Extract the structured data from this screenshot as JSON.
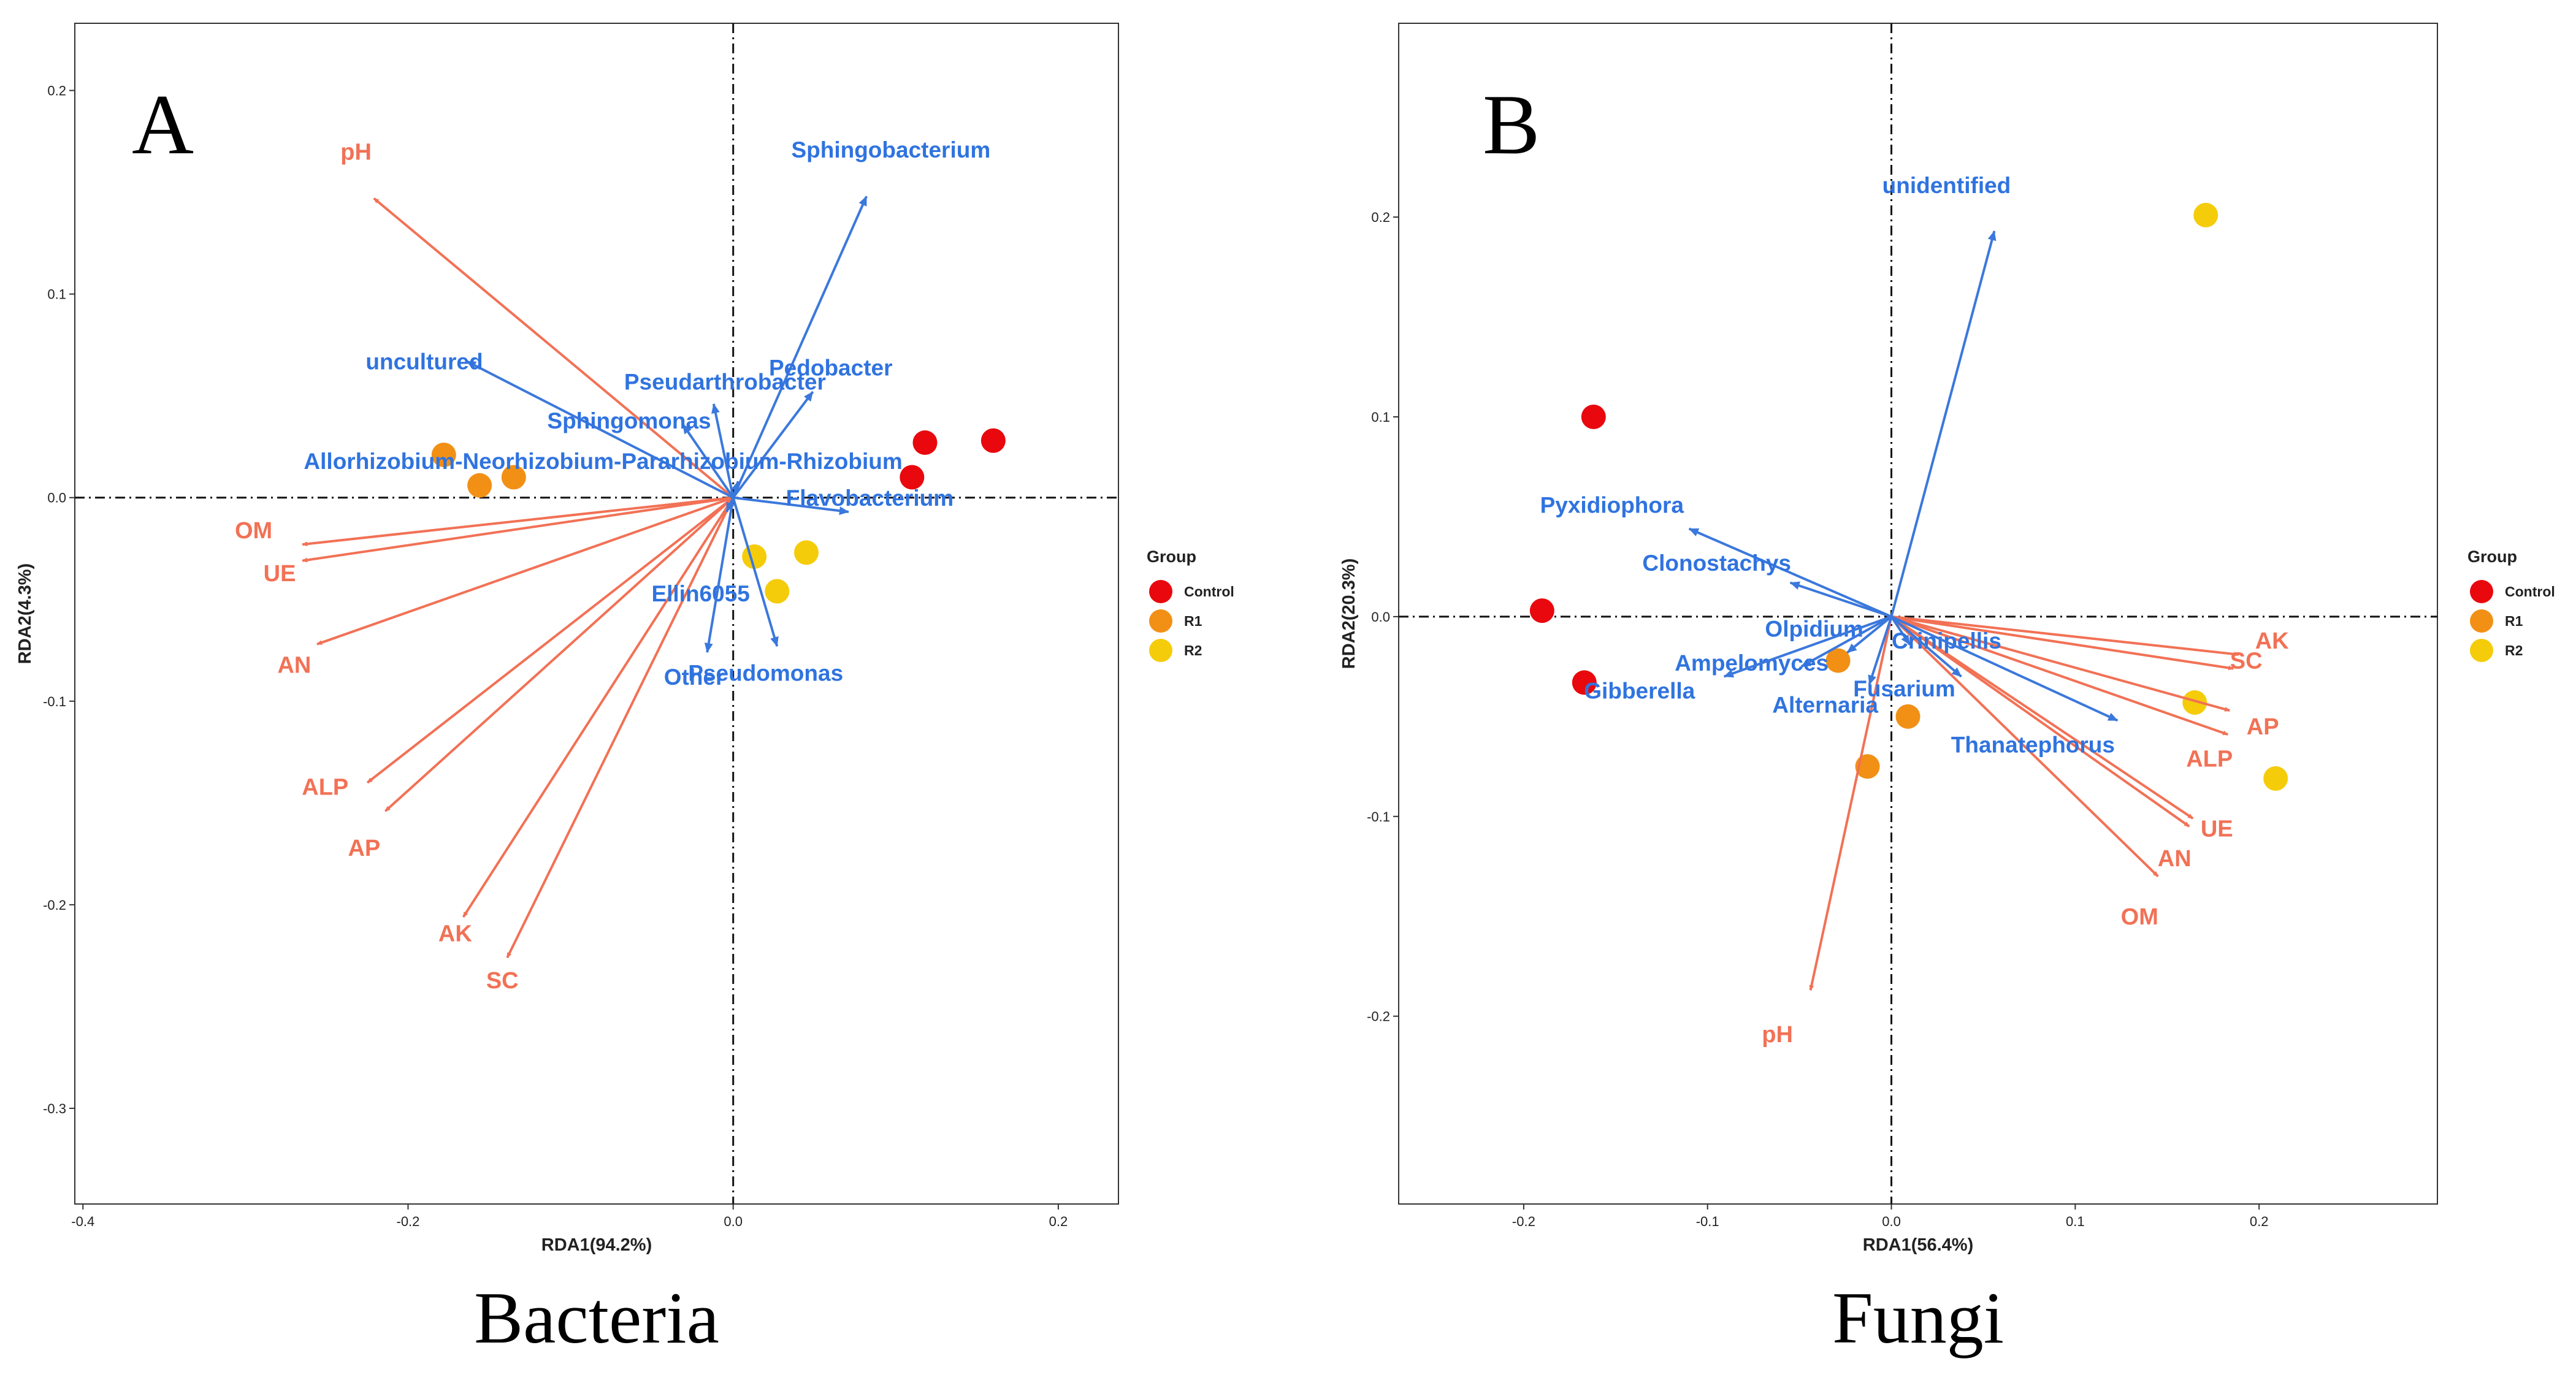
{
  "colors": {
    "env_arrow": "#F27155",
    "taxon_arrow": "#3B78DC",
    "taxon_label": "#2F73DF",
    "env_label": "#F27155"
  },
  "chart_data": [
    {
      "panel": "A",
      "type": "scatter",
      "caption": "Bacteria",
      "xlabel": "RDA1(94.2%)",
      "ylabel": "RDA2(4.3%)",
      "xlim": [
        -0.405,
        0.237
      ],
      "ylim": [
        -0.347,
        0.233
      ],
      "xticks": [
        {
          "v": -0.4,
          "t": "-0.4"
        },
        {
          "v": -0.2,
          "t": "-0.2"
        },
        {
          "v": 0.0,
          "t": "0.0"
        },
        {
          "v": 0.2,
          "t": "0.2"
        }
      ],
      "yticks": [
        {
          "v": 0.2,
          "t": "0.2"
        },
        {
          "v": 0.1,
          "t": "0.1"
        },
        {
          "v": 0.0,
          "t": "0.0"
        },
        {
          "v": -0.1,
          "t": "-0.1"
        },
        {
          "v": -0.2,
          "t": "-0.2"
        },
        {
          "v": -0.3,
          "t": "-0.3"
        }
      ],
      "env_arrows": [
        {
          "name": "pH",
          "x": -0.221,
          "y": 0.147,
          "lx": -0.232,
          "ly": 0.166
        },
        {
          "name": "OM",
          "x": -0.265,
          "y": -0.023,
          "lx": -0.295,
          "ly": -0.02
        },
        {
          "name": "UE",
          "x": -0.265,
          "y": -0.031,
          "lx": -0.279,
          "ly": -0.041
        },
        {
          "name": "AN",
          "x": -0.256,
          "y": -0.072,
          "lx": -0.27,
          "ly": -0.086
        },
        {
          "name": "ALP",
          "x": -0.225,
          "y": -0.14,
          "lx": -0.251,
          "ly": -0.146
        },
        {
          "name": "AP",
          "x": -0.214,
          "y": -0.154,
          "lx": -0.227,
          "ly": -0.176
        },
        {
          "name": "AK",
          "x": -0.166,
          "y": -0.206,
          "lx": -0.171,
          "ly": -0.218
        },
        {
          "name": "SC",
          "x": -0.139,
          "y": -0.226,
          "lx": -0.142,
          "ly": -0.241
        }
      ],
      "taxon_arrows": [
        {
          "name": "Sphingobacterium",
          "x": 0.082,
          "y": 0.148,
          "lx": 0.097,
          "ly": 0.167
        },
        {
          "name": "uncultured",
          "x": -0.164,
          "y": 0.067,
          "lx": -0.19,
          "ly": 0.063
        },
        {
          "name": "Pedobacter",
          "x": 0.049,
          "y": 0.052,
          "lx": 0.06,
          "ly": 0.06
        },
        {
          "name": "Pseudarthrobacter",
          "x": -0.012,
          "y": 0.046,
          "lx": -0.005,
          "ly": 0.053
        },
        {
          "name": "Sphingomonas",
          "x": -0.031,
          "y": 0.036,
          "lx": -0.064,
          "ly": 0.034
        },
        {
          "name": "Allorhizobium-Neorhizobium-Pararhizobium-Rhizobium",
          "x": 0.003,
          "y": 0.008,
          "lx": -0.08,
          "ly": 0.014
        },
        {
          "name": "Flavobacterium",
          "x": 0.071,
          "y": -0.007,
          "lx": 0.084,
          "ly": -0.004
        },
        {
          "name": "Ellin6055",
          "x": -0.004,
          "y": -0.007,
          "lx": -0.02,
          "ly": -0.051
        },
        {
          "name": "Other",
          "x": -0.016,
          "y": -0.076,
          "lx": -0.024,
          "ly": -0.092
        },
        {
          "name": "Pseudomonas",
          "x": 0.027,
          "y": -0.073,
          "lx": 0.02,
          "ly": -0.09
        }
      ],
      "points": [
        {
          "group": "Control",
          "x": 0.118,
          "y": 0.027
        },
        {
          "group": "Control",
          "x": 0.16,
          "y": 0.028
        },
        {
          "group": "Control",
          "x": 0.11,
          "y": 0.01
        },
        {
          "group": "R1",
          "x": -0.178,
          "y": 0.021
        },
        {
          "group": "R1",
          "x": -0.156,
          "y": 0.006
        },
        {
          "group": "R1",
          "x": -0.135,
          "y": 0.01
        },
        {
          "group": "R2",
          "x": 0.013,
          "y": -0.029
        },
        {
          "group": "R2",
          "x": 0.045,
          "y": -0.027
        },
        {
          "group": "R2",
          "x": 0.027,
          "y": -0.046
        }
      ],
      "legend": {
        "title": "Group",
        "items": [
          {
            "label": "Control",
            "color": "#E8080D"
          },
          {
            "label": "R1",
            "color": "#F29016"
          },
          {
            "label": "R2",
            "color": "#F5CC0A"
          }
        ]
      }
    },
    {
      "panel": "B",
      "type": "scatter",
      "caption": "Fungi",
      "xlabel": "RDA1(56.4%)",
      "ylabel": "RDA2(20.3%)",
      "xlim": [
        -0.268,
        0.297
      ],
      "ylim": [
        -0.294,
        0.297
      ],
      "xticks": [
        {
          "v": -0.2,
          "t": "-0.2"
        },
        {
          "v": -0.1,
          "t": "-0.1"
        },
        {
          "v": 0.0,
          "t": "0.0"
        },
        {
          "v": 0.1,
          "t": "0.1"
        },
        {
          "v": 0.2,
          "t": "0.2"
        }
      ],
      "yticks": [
        {
          "v": 0.2,
          "t": "0.2"
        },
        {
          "v": 0.1,
          "t": "0.1"
        },
        {
          "v": 0.0,
          "t": "0.0"
        },
        {
          "v": -0.1,
          "t": "-0.1"
        },
        {
          "v": -0.2,
          "t": "-0.2"
        }
      ],
      "env_arrows": [
        {
          "name": "AK",
          "x": 0.189,
          "y": -0.019,
          "lx": 0.207,
          "ly": -0.016
        },
        {
          "name": "SC",
          "x": 0.186,
          "y": -0.026,
          "lx": 0.193,
          "ly": -0.026
        },
        {
          "name": "AP",
          "x": 0.184,
          "y": -0.047,
          "lx": 0.202,
          "ly": -0.059
        },
        {
          "name": "ALP",
          "x": 0.183,
          "y": -0.059,
          "lx": 0.173,
          "ly": -0.075
        },
        {
          "name": "UE",
          "x": 0.164,
          "y": -0.101,
          "lx": 0.177,
          "ly": -0.11
        },
        {
          "name": "AN",
          "x": 0.162,
          "y": -0.105,
          "lx": 0.154,
          "ly": -0.125
        },
        {
          "name": "OM",
          "x": 0.145,
          "y": -0.13,
          "lx": 0.135,
          "ly": -0.154
        },
        {
          "name": "pH",
          "x": -0.044,
          "y": -0.187,
          "lx": -0.062,
          "ly": -0.213
        }
      ],
      "taxon_arrows": [
        {
          "name": "unidentified",
          "x": 0.056,
          "y": 0.193,
          "lx": 0.03,
          "ly": 0.212
        },
        {
          "name": "Pyxidiophora",
          "x": -0.11,
          "y": 0.044,
          "lx": -0.152,
          "ly": 0.052
        },
        {
          "name": "Clonostachys",
          "x": -0.055,
          "y": 0.017,
          "lx": -0.095,
          "ly": 0.023
        },
        {
          "name": "Olpidium",
          "x": -0.024,
          "y": -0.018,
          "lx": -0.042,
          "ly": -0.01
        },
        {
          "name": "Ampelomyces",
          "x": -0.049,
          "y": -0.025,
          "lx": -0.076,
          "ly": -0.027
        },
        {
          "name": "Gibberella",
          "x": -0.091,
          "y": -0.03,
          "lx": -0.137,
          "ly": -0.041
        },
        {
          "name": "Crinipellis",
          "x": 0.01,
          "y": -0.014,
          "lx": 0.03,
          "ly": -0.016
        },
        {
          "name": "Fusarium",
          "x": 0.038,
          "y": -0.03,
          "lx": 0.007,
          "ly": -0.04
        },
        {
          "name": "Alternaria",
          "x": -0.012,
          "y": -0.034,
          "lx": -0.036,
          "ly": -0.048
        },
        {
          "name": "Thanatephorus",
          "x": 0.123,
          "y": -0.052,
          "lx": 0.077,
          "ly": -0.068
        }
      ],
      "points": [
        {
          "group": "Control",
          "x": -0.162,
          "y": 0.1
        },
        {
          "group": "Control",
          "x": -0.19,
          "y": 0.003
        },
        {
          "group": "Control",
          "x": -0.167,
          "y": -0.033
        },
        {
          "group": "R1",
          "x": -0.029,
          "y": -0.022
        },
        {
          "group": "R1",
          "x": 0.009,
          "y": -0.05
        },
        {
          "group": "R1",
          "x": -0.013,
          "y": -0.075
        },
        {
          "group": "R2",
          "x": 0.171,
          "y": 0.201
        },
        {
          "group": "R2",
          "x": 0.165,
          "y": -0.043
        },
        {
          "group": "R2",
          "x": 0.209,
          "y": -0.081
        }
      ],
      "legend": {
        "title": "Group",
        "items": [
          {
            "label": "Control",
            "color": "#E8080D"
          },
          {
            "label": "R1",
            "color": "#F29016"
          },
          {
            "label": "R2",
            "color": "#F5CC0A"
          }
        ]
      }
    }
  ]
}
